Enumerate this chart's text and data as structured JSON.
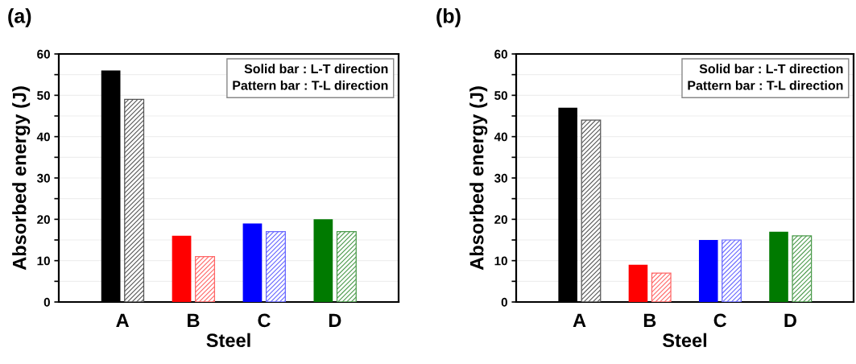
{
  "chart_data": [
    {
      "type": "bar",
      "title": "(a)",
      "xlabel": "Steel",
      "ylabel": "Absorbed energy (J)",
      "categories": [
        "A",
        "B",
        "C",
        "D"
      ],
      "series": [
        {
          "colors": [
            "#000000",
            "#ff0000",
            "#0000ff",
            "#007a00"
          ],
          "values": [
            56,
            16,
            19,
            20
          ]
        },
        {
          "colors": [
            "#555555",
            "#ff6666",
            "#6666ff",
            "#4a9a4a"
          ],
          "values": [
            49,
            11,
            17,
            17
          ]
        }
      ],
      "ylim": [
        0,
        60
      ],
      "yticks": [
        0,
        {
          "value": 5,
          "label": null
        },
        10,
        {
          "value": 15,
          "label": null
        },
        20,
        {
          "value": 25,
          "label": null
        },
        30,
        {
          "value": 35,
          "label": null
        },
        40,
        {
          "value": 45,
          "label": null
        },
        50,
        {
          "value": 55,
          "label": null
        },
        60
      ],
      "grid": "y",
      "annotations": [
        "Solid bar : L-T direction",
        "Pattern bar : T-L direction"
      ]
    },
    {
      "type": "bar",
      "title": "(b)",
      "xlabel": "Steel",
      "ylabel": "Absorbed energy (J)",
      "categories": [
        "A",
        "B",
        "C",
        "D"
      ],
      "series": [
        {
          "colors": [
            "#000000",
            "#ff0000",
            "#0000ff",
            "#007a00"
          ],
          "values": [
            47,
            9,
            15,
            17
          ]
        },
        {
          "colors": [
            "#555555",
            "#ff6666",
            "#6666ff",
            "#4a9a4a"
          ],
          "values": [
            44,
            7,
            15,
            16
          ]
        }
      ],
      "ylim": [
        0,
        60
      ],
      "yticks": [
        0,
        {
          "value": 5,
          "label": null
        },
        10,
        {
          "value": 15,
          "label": null
        },
        20,
        {
          "value": 25,
          "label": null
        },
        30,
        {
          "value": 35,
          "label": null
        },
        40,
        {
          "value": 45,
          "label": null
        },
        50,
        {
          "value": 55,
          "label": null
        },
        60
      ],
      "grid": "y",
      "annotations": [
        "Solid bar : L-T direction",
        "Pattern bar : T-L direction"
      ]
    }
  ]
}
